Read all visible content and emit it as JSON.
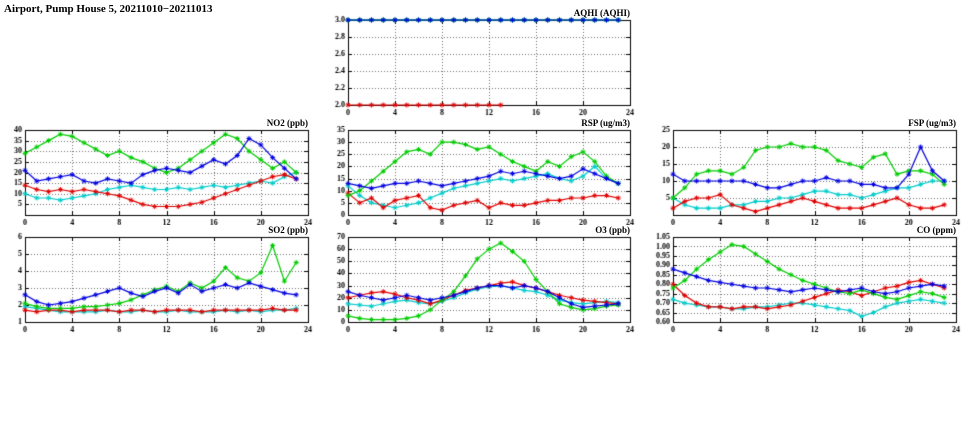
{
  "page": {
    "title": "Airport, Pump House 5, 20211010−20211013",
    "background": "#ffffff"
  },
  "series_colors": {
    "blue": "#0000e0",
    "green": "#00cc00",
    "red": "#e00000",
    "cyan": "#00cccc"
  },
  "chart_data": [
    {
      "id": "aqhi",
      "type": "line",
      "title": "AQHI (AQHI)",
      "xlim": [
        0,
        24
      ],
      "x_ticks": [
        0,
        4,
        8,
        12,
        16,
        20,
        24
      ],
      "x_tick_labels": [
        "0",
        "4",
        "8",
        "12",
        "16",
        "20",
        "24"
      ],
      "ylim": [
        2.0,
        3.0
      ],
      "y_ticks": [
        2.0,
        2.2,
        2.4,
        2.6,
        2.8,
        3.0
      ],
      "y_tick_labels": [
        "2.0",
        "2.2",
        "2.4",
        "2.6",
        "2.8",
        "3.0"
      ],
      "grid": true,
      "series": [
        {
          "name": "cyan",
          "color": "#00cccc",
          "values": [
            3,
            3,
            3,
            3,
            3,
            3,
            3,
            3,
            3,
            3,
            3,
            3,
            3,
            3,
            3,
            3,
            3,
            3,
            3,
            3,
            3,
            3,
            3,
            3
          ]
        },
        {
          "name": "red",
          "color": "#e00000",
          "values": [
            2,
            2,
            2,
            2,
            2,
            2,
            2,
            2,
            2,
            2,
            2,
            2,
            2,
            2,
            null,
            null,
            null,
            null,
            null,
            null,
            null,
            null,
            null,
            null
          ]
        },
        {
          "name": "green",
          "color": "#00cc00",
          "values": [
            3,
            3,
            3,
            3,
            3,
            3,
            3,
            3,
            3,
            3,
            3,
            3,
            3,
            3,
            3,
            3,
            3,
            3,
            3,
            3,
            3,
            3,
            3,
            3
          ]
        },
        {
          "name": "blue",
          "color": "#0000e0",
          "values": [
            3,
            3,
            3,
            3,
            3,
            3,
            3,
            3,
            3,
            3,
            3,
            3,
            3,
            3,
            3,
            3,
            3,
            3,
            3,
            3,
            3,
            3,
            3,
            3
          ]
        }
      ]
    },
    {
      "id": "no2",
      "type": "line",
      "title": "NO2 (ppb)",
      "xlim": [
        0,
        24
      ],
      "x_ticks": [
        0,
        4,
        8,
        12,
        16,
        20,
        24
      ],
      "x_tick_labels": [
        "0",
        "4",
        "8",
        "12",
        "16",
        "20",
        "24"
      ],
      "ylim": [
        0,
        40
      ],
      "y_ticks": [
        5,
        10,
        15,
        20,
        25,
        30,
        35,
        40
      ],
      "y_tick_labels": [
        "5",
        "10",
        "15",
        "20",
        "25",
        "30",
        "35",
        "40"
      ],
      "grid": true,
      "series": [
        {
          "name": "cyan",
          "color": "#00cccc",
          "values": [
            10,
            8,
            8,
            7,
            8,
            9,
            10,
            12,
            13,
            14,
            13,
            12,
            12,
            13,
            12,
            13,
            14,
            13,
            14,
            15,
            16,
            15,
            18,
            20
          ]
        },
        {
          "name": "red",
          "color": "#e00000",
          "values": [
            14,
            12,
            11,
            12,
            11,
            12,
            11,
            10,
            9,
            7,
            5,
            4,
            4,
            4,
            5,
            6,
            8,
            10,
            12,
            14,
            16,
            18,
            19,
            17
          ]
        },
        {
          "name": "green",
          "color": "#00cc00",
          "values": [
            29,
            32,
            35,
            38,
            37,
            34,
            31,
            28,
            30,
            27,
            25,
            22,
            20,
            22,
            26,
            30,
            34,
            38,
            36,
            30,
            26,
            22,
            25,
            20
          ]
        },
        {
          "name": "blue",
          "color": "#0000e0",
          "values": [
            21,
            16,
            17,
            18,
            19,
            16,
            15,
            17,
            16,
            15,
            19,
            21,
            22,
            21,
            20,
            23,
            26,
            24,
            28,
            36,
            33,
            27,
            22,
            17
          ]
        }
      ]
    },
    {
      "id": "rsp",
      "type": "line",
      "title": "RSP (ug/m3)",
      "xlim": [
        0,
        24
      ],
      "x_ticks": [
        0,
        4,
        8,
        12,
        16,
        20,
        24
      ],
      "x_tick_labels": [
        "0",
        "4",
        "8",
        "12",
        "16",
        "20",
        "24"
      ],
      "ylim": [
        0,
        35
      ],
      "y_ticks": [
        0,
        5,
        10,
        15,
        20,
        25,
        30,
        35
      ],
      "y_tick_labels": [
        "0",
        "5",
        "10",
        "15",
        "20",
        "25",
        "30",
        "35"
      ],
      "grid": true,
      "series": [
        {
          "name": "cyan",
          "color": "#00cccc",
          "values": [
            12,
            8,
            5,
            4,
            3,
            4,
            5,
            7,
            9,
            11,
            12,
            13,
            14,
            15,
            14,
            15,
            16,
            17,
            15,
            14,
            16,
            20,
            15,
            13
          ]
        },
        {
          "name": "red",
          "color": "#e00000",
          "values": [
            9,
            5,
            7,
            3,
            6,
            7,
            8,
            3,
            2,
            4,
            5,
            6,
            3,
            5,
            4,
            4,
            5,
            6,
            6,
            7,
            7,
            8,
            8,
            7
          ]
        },
        {
          "name": "green",
          "color": "#00cc00",
          "values": [
            8,
            10,
            14,
            18,
            22,
            26,
            27,
            25,
            30,
            30,
            29,
            27,
            28,
            25,
            22,
            20,
            18,
            22,
            20,
            24,
            26,
            22,
            16,
            13
          ]
        },
        {
          "name": "blue",
          "color": "#0000e0",
          "values": [
            13,
            12,
            11,
            12,
            13,
            13,
            14,
            13,
            12,
            13,
            14,
            15,
            16,
            18,
            17,
            18,
            17,
            16,
            15,
            16,
            19,
            17,
            15,
            13
          ]
        }
      ]
    },
    {
      "id": "fsp",
      "type": "line",
      "title": "FSP (ug/m3)",
      "xlim": [
        0,
        24
      ],
      "x_ticks": [
        0,
        4,
        8,
        12,
        16,
        20,
        24
      ],
      "x_tick_labels": [
        "0",
        "4",
        "8",
        "12",
        "16",
        "20",
        "24"
      ],
      "ylim": [
        0,
        25
      ],
      "y_ticks": [
        5,
        10,
        15,
        20,
        25
      ],
      "y_tick_labels": [
        "5",
        "10",
        "15",
        "20",
        "25"
      ],
      "grid": true,
      "series": [
        {
          "name": "cyan",
          "color": "#00cccc",
          "values": [
            5,
            3,
            2,
            2,
            2,
            3,
            3,
            4,
            4,
            5,
            5,
            6,
            7,
            7,
            6,
            6,
            5,
            6,
            7,
            8,
            8,
            9,
            10,
            10
          ]
        },
        {
          "name": "red",
          "color": "#e00000",
          "values": [
            2,
            4,
            5,
            5,
            6,
            3,
            2,
            1,
            2,
            3,
            4,
            5,
            4,
            3,
            2,
            2,
            2,
            3,
            4,
            5,
            3,
            2,
            2,
            3
          ]
        },
        {
          "name": "green",
          "color": "#00cc00",
          "values": [
            5,
            8,
            12,
            13,
            13,
            12,
            14,
            19,
            20,
            20,
            21,
            20,
            20,
            19,
            16,
            15,
            14,
            17,
            18,
            12,
            13,
            13,
            12,
            9
          ]
        },
        {
          "name": "blue",
          "color": "#0000e0",
          "values": [
            12,
            10,
            10,
            10,
            10,
            10,
            10,
            9,
            8,
            8,
            9,
            10,
            10,
            11,
            10,
            10,
            9,
            9,
            8,
            8,
            12,
            20,
            13,
            10
          ]
        }
      ]
    },
    {
      "id": "so2",
      "type": "line",
      "title": "SO2 (ppb)",
      "xlim": [
        0,
        24
      ],
      "x_ticks": [
        0,
        4,
        8,
        12,
        16,
        20,
        24
      ],
      "x_tick_labels": [
        "0",
        "4",
        "8",
        "12",
        "16",
        "20",
        "24"
      ],
      "ylim": [
        1,
        6
      ],
      "y_ticks": [
        1,
        2,
        3,
        4,
        5,
        6
      ],
      "y_tick_labels": [
        "1",
        "2",
        "3",
        "4",
        "5",
        "6"
      ],
      "grid": true,
      "series": [
        {
          "name": "cyan",
          "color": "#00cccc",
          "values": [
            1.9,
            1.8,
            1.7,
            1.6,
            1.6,
            1.6,
            1.6,
            1.7,
            1.6,
            1.6,
            1.7,
            1.6,
            1.6,
            1.7,
            1.6,
            1.6,
            1.6,
            1.7,
            1.6,
            1.7,
            1.6,
            1.7,
            1.7,
            1.8
          ]
        },
        {
          "name": "red",
          "color": "#e00000",
          "values": [
            1.7,
            1.6,
            1.7,
            1.7,
            1.6,
            1.7,
            1.7,
            1.7,
            1.6,
            1.7,
            1.7,
            1.6,
            1.7,
            1.7,
            1.7,
            1.6,
            1.7,
            1.7,
            1.7,
            1.7,
            1.7,
            1.8,
            1.7,
            1.7
          ]
        },
        {
          "name": "green",
          "color": "#00cc00",
          "values": [
            2.1,
            1.9,
            1.8,
            1.8,
            1.8,
            1.9,
            1.9,
            2.0,
            2.1,
            2.3,
            2.6,
            2.9,
            3.1,
            2.8,
            3.3,
            3.0,
            3.4,
            4.2,
            3.6,
            3.4,
            3.9,
            5.5,
            3.4,
            4.5
          ]
        },
        {
          "name": "blue",
          "color": "#0000e0",
          "values": [
            2.6,
            2.2,
            2.0,
            2.1,
            2.2,
            2.4,
            2.6,
            2.8,
            3.0,
            2.7,
            2.5,
            2.8,
            3.0,
            2.7,
            3.2,
            2.8,
            3.0,
            3.2,
            3.0,
            3.3,
            3.1,
            2.9,
            2.7,
            2.6
          ]
        }
      ]
    },
    {
      "id": "o3",
      "type": "line",
      "title": "O3 (ppb)",
      "xlim": [
        0,
        24
      ],
      "x_ticks": [
        0,
        4,
        8,
        12,
        16,
        20,
        24
      ],
      "x_tick_labels": [
        "0",
        "4",
        "8",
        "12",
        "16",
        "20",
        "24"
      ],
      "ylim": [
        0,
        70
      ],
      "y_ticks": [
        0,
        10,
        20,
        30,
        40,
        50,
        60,
        70
      ],
      "y_tick_labels": [
        "0",
        "10",
        "20",
        "30",
        "40",
        "50",
        "60",
        "70"
      ],
      "grid": true,
      "series": [
        {
          "name": "cyan",
          "color": "#00cccc",
          "values": [
            15,
            14,
            13,
            15,
            17,
            18,
            16,
            15,
            17,
            20,
            24,
            27,
            29,
            30,
            28,
            26,
            25,
            22,
            18,
            16,
            15,
            16,
            17,
            16
          ]
        },
        {
          "name": "red",
          "color": "#e00000",
          "values": [
            20,
            22,
            24,
            25,
            23,
            20,
            18,
            15,
            18,
            22,
            26,
            28,
            30,
            32,
            33,
            30,
            28,
            25,
            22,
            20,
            18,
            17,
            16,
            15
          ]
        },
        {
          "name": "green",
          "color": "#00cc00",
          "values": [
            5,
            3,
            2,
            2,
            2,
            3,
            5,
            10,
            18,
            25,
            38,
            52,
            60,
            65,
            58,
            50,
            35,
            25,
            15,
            12,
            10,
            11,
            13,
            14
          ]
        },
        {
          "name": "blue",
          "color": "#0000e0",
          "values": [
            25,
            22,
            20,
            18,
            20,
            22,
            20,
            18,
            20,
            22,
            25,
            28,
            30,
            30,
            28,
            30,
            28,
            25,
            20,
            15,
            12,
            13,
            14,
            15
          ]
        }
      ]
    },
    {
      "id": "co",
      "type": "line",
      "title": "CO (ppm)",
      "xlim": [
        0,
        24
      ],
      "x_ticks": [
        0,
        4,
        8,
        12,
        16,
        20,
        24
      ],
      "x_tick_labels": [
        "0",
        "4",
        "8",
        "12",
        "16",
        "20",
        "24"
      ],
      "ylim": [
        0.6,
        1.05
      ],
      "y_ticks": [
        0.6,
        0.65,
        0.7,
        0.75,
        0.8,
        0.85,
        0.9,
        0.95,
        1.0,
        1.05
      ],
      "y_tick_labels": [
        "0.60",
        "0.65",
        "0.70",
        "0.75",
        "0.80",
        "0.85",
        "0.90",
        "0.95",
        "1.00",
        "1.05"
      ],
      "grid": true,
      "series": [
        {
          "name": "cyan",
          "color": "#00cccc",
          "values": [
            0.72,
            0.7,
            0.69,
            0.68,
            0.68,
            0.67,
            0.67,
            0.68,
            0.68,
            0.69,
            0.7,
            0.7,
            0.69,
            0.68,
            0.67,
            0.66,
            0.63,
            0.65,
            0.68,
            0.7,
            0.71,
            0.72,
            0.71,
            0.7
          ]
        },
        {
          "name": "red",
          "color": "#e00000",
          "values": [
            0.8,
            0.74,
            0.7,
            0.68,
            0.68,
            0.67,
            0.68,
            0.68,
            0.67,
            0.68,
            0.69,
            0.71,
            0.73,
            0.75,
            0.77,
            0.76,
            0.74,
            0.76,
            0.78,
            0.79,
            0.81,
            0.82,
            0.8,
            0.78
          ]
        },
        {
          "name": "green",
          "color": "#00cc00",
          "values": [
            0.78,
            0.82,
            0.88,
            0.93,
            0.97,
            1.01,
            1.0,
            0.96,
            0.92,
            0.88,
            0.85,
            0.82,
            0.8,
            0.78,
            0.76,
            0.75,
            0.77,
            0.75,
            0.73,
            0.72,
            0.74,
            0.76,
            0.75,
            0.73
          ]
        },
        {
          "name": "blue",
          "color": "#0000e0",
          "values": [
            0.88,
            0.86,
            0.84,
            0.82,
            0.81,
            0.8,
            0.79,
            0.78,
            0.78,
            0.77,
            0.76,
            0.77,
            0.78,
            0.77,
            0.76,
            0.77,
            0.78,
            0.76,
            0.75,
            0.76,
            0.78,
            0.79,
            0.8,
            0.79
          ]
        }
      ]
    }
  ]
}
